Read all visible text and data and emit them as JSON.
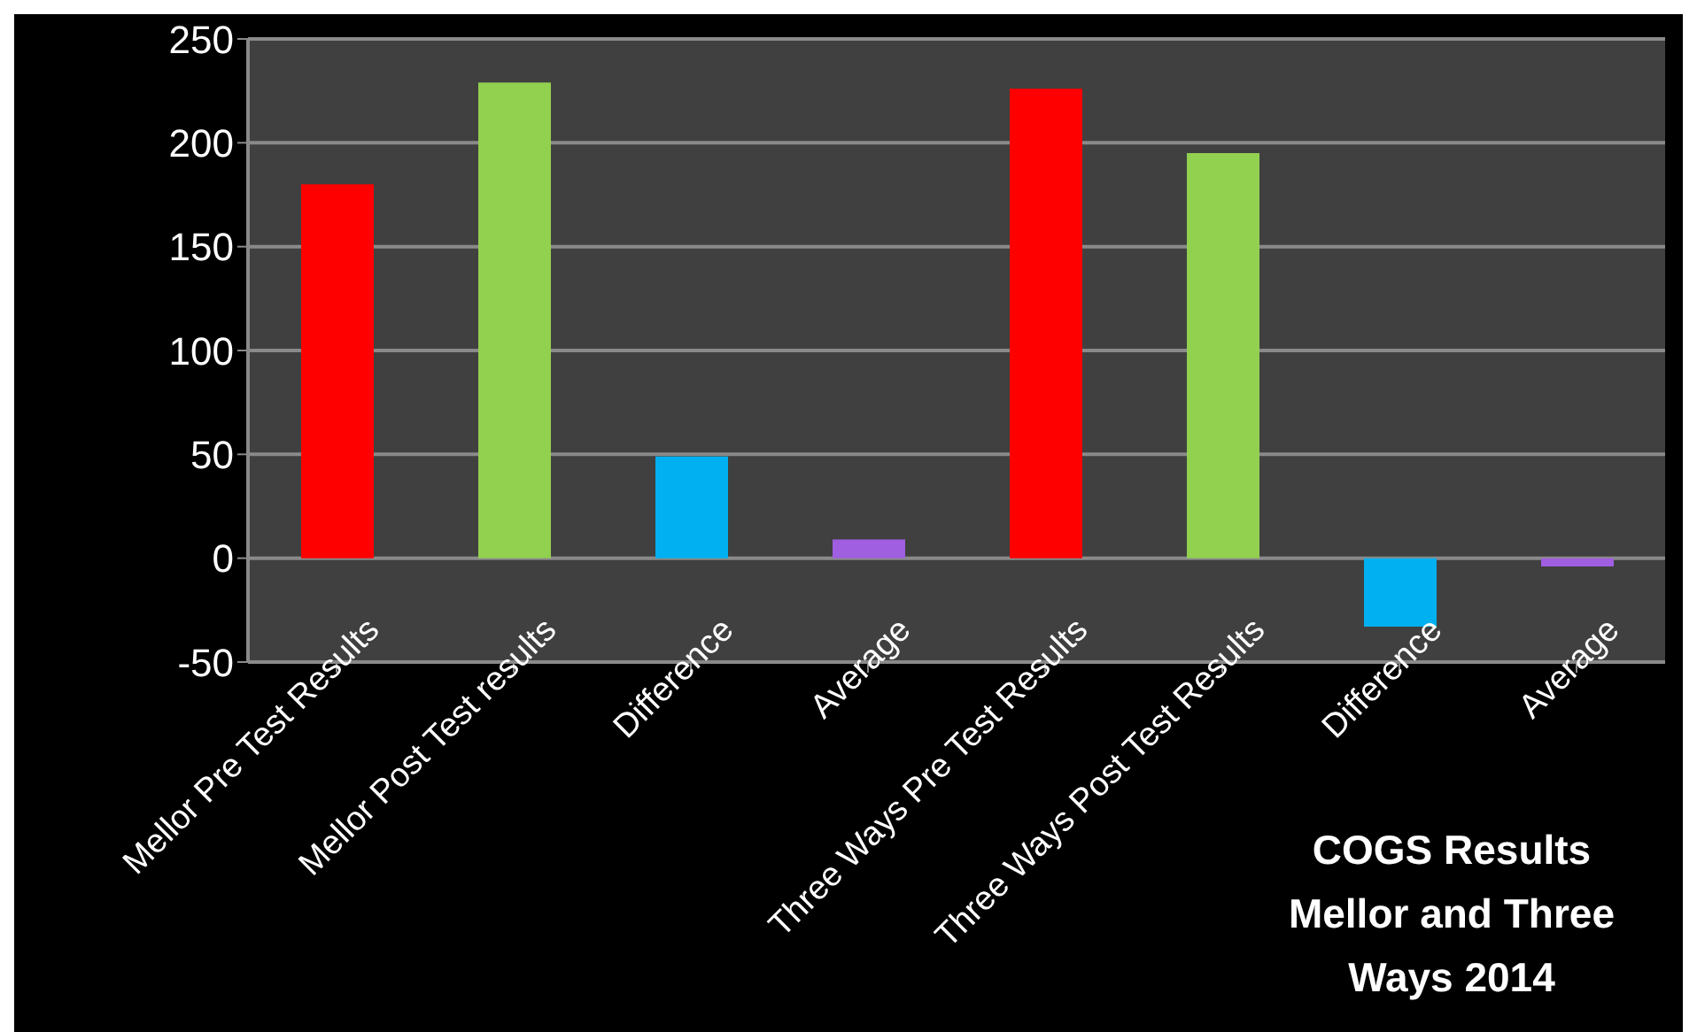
{
  "chart_data": {
    "type": "bar",
    "title": "COGS Results Mellor and Three Ways 2014",
    "categories": [
      "Mellor Pre Test Results",
      "Mellor Post Test results",
      "Difference",
      "Average",
      "Three Ways Pre Test Results",
      "Three Ways Post Test Results",
      "Difference",
      "Average"
    ],
    "values": [
      180,
      229,
      49,
      9,
      226,
      195,
      -33,
      -4
    ],
    "colors": [
      "#ff0000",
      "#92d050",
      "#00b0f0",
      "#a05ee0",
      "#ff0000",
      "#92d050",
      "#00b0f0",
      "#a05ee0"
    ],
    "ylim": [
      -50,
      250
    ],
    "yticks": [
      -50,
      0,
      50,
      100,
      150,
      200,
      250
    ],
    "grid": "y"
  }
}
